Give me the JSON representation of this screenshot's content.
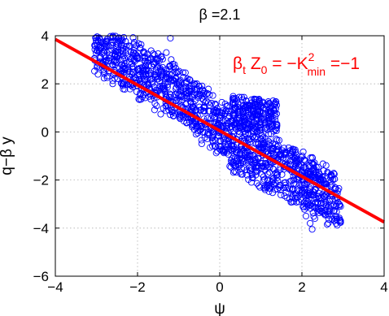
{
  "chart_data": {
    "type": "scatter",
    "title": "β =2.1",
    "xlabel": "ψ",
    "ylabel": "q−β y",
    "xlim": [
      -4,
      4
    ],
    "ylim": [
      -6,
      4
    ],
    "xticks": [
      "−4",
      "−2",
      "0",
      "2",
      "4"
    ],
    "yticks": [
      "−6",
      "−4",
      "−2",
      "0",
      "2",
      "4"
    ],
    "grid": true,
    "marker": "open-circle",
    "colors": {
      "scatter": "#0000ff",
      "fit_line": "#ff0000",
      "annotation": "#ff0000"
    },
    "annotation": {
      "text_main": "β",
      "text_sub": "t",
      "text_mid": " Z",
      "text_sub2": "0",
      "text_eq": " = −K",
      "text_sup": "2",
      "text_sub3": "min",
      "text_end": " =−1"
    },
    "fit_line": {
      "x": [
        -4,
        4
      ],
      "y": [
        3.85,
        -3.75
      ]
    },
    "series": [
      {
        "marker_points": [
          [
            -3.0,
            3.7
          ],
          [
            -2.8,
            3.4
          ],
          [
            -2.5,
            3.1
          ],
          [
            -2.2,
            2.9
          ],
          [
            -2.0,
            2.6
          ],
          [
            -1.8,
            2.4
          ],
          [
            -1.5,
            2.2
          ],
          [
            -1.2,
            2.1
          ],
          [
            -1.0,
            1.9
          ],
          [
            -0.8,
            1.6
          ],
          [
            -0.6,
            1.3
          ],
          [
            -0.5,
            1.9
          ],
          [
            -0.3,
            1.6
          ],
          [
            -0.2,
            1.2
          ],
          [
            -0.1,
            0.8
          ],
          [
            0.0,
            0.3
          ],
          [
            0.1,
            -0.2
          ],
          [
            0.3,
            -0.6
          ],
          [
            0.5,
            -0.9
          ],
          [
            0.7,
            -1.1
          ],
          [
            0.9,
            -1.4
          ],
          [
            1.1,
            -1.6
          ],
          [
            1.4,
            -1.9
          ],
          [
            1.6,
            -2.1
          ],
          [
            1.8,
            -2.0
          ],
          [
            2.0,
            -2.2
          ],
          [
            2.2,
            -2.4
          ],
          [
            2.5,
            -2.6
          ],
          [
            2.8,
            -2.8
          ],
          [
            -1.2,
            3.9
          ],
          [
            -1.3,
            3.3
          ],
          [
            -1.1,
            2.8
          ],
          [
            2.2,
            -3.8
          ],
          [
            2.25,
            -4.05
          ],
          [
            2.1,
            -3.5
          ],
          [
            0.6,
            1.0
          ],
          [
            0.8,
            0.6
          ],
          [
            1.0,
            0.3
          ],
          [
            1.2,
            1.2
          ],
          [
            0.9,
            0.0
          ]
        ]
      }
    ]
  }
}
